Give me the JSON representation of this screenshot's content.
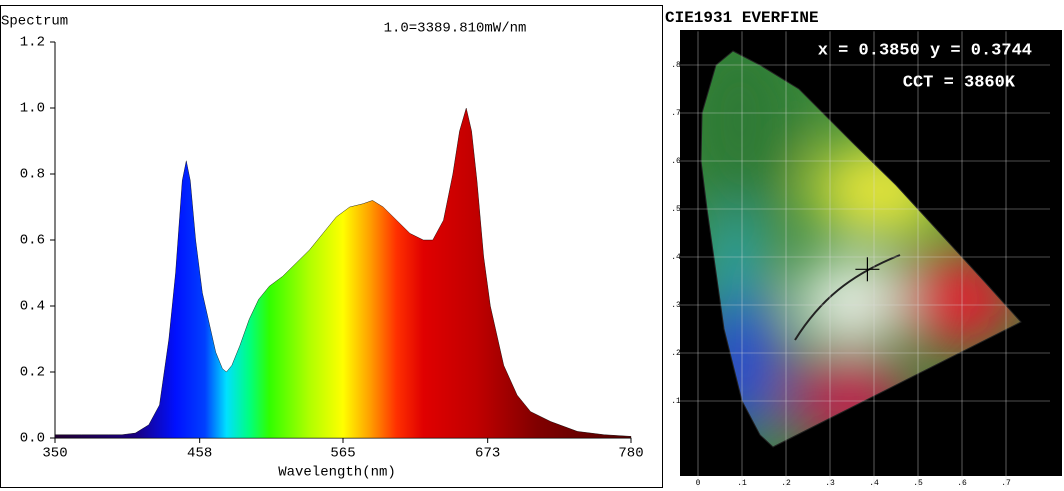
{
  "chart_data": [
    {
      "type": "area",
      "title": "Spectrum",
      "annotation": "1.0=3389.810mW/nm",
      "xlabel": "Wavelength(nm)",
      "x": [
        350,
        370,
        390,
        400,
        410,
        420,
        428,
        435,
        440,
        445,
        448,
        451,
        455,
        460,
        465,
        470,
        475,
        478,
        482,
        488,
        495,
        502,
        510,
        520,
        530,
        540,
        550,
        560,
        570,
        580,
        587,
        595,
        605,
        615,
        625,
        632,
        640,
        647,
        652,
        657,
        661,
        665,
        670,
        675,
        685,
        695,
        705,
        720,
        740,
        760,
        780
      ],
      "values": [
        0.01,
        0.01,
        0.01,
        0.01,
        0.015,
        0.04,
        0.1,
        0.3,
        0.5,
        0.78,
        0.84,
        0.78,
        0.6,
        0.44,
        0.35,
        0.26,
        0.21,
        0.2,
        0.22,
        0.28,
        0.36,
        0.42,
        0.46,
        0.49,
        0.53,
        0.57,
        0.62,
        0.67,
        0.7,
        0.71,
        0.72,
        0.7,
        0.66,
        0.62,
        0.6,
        0.6,
        0.66,
        0.8,
        0.93,
        1.0,
        0.93,
        0.78,
        0.55,
        0.4,
        0.22,
        0.13,
        0.08,
        0.05,
        0.02,
        0.01,
        0.005
      ],
      "xlim": [
        350,
        780
      ],
      "xticks": [
        350,
        458,
        565,
        673,
        780
      ],
      "ylim": [
        0,
        1.2
      ],
      "yticks": [
        {
          "value": 0,
          "label": "0.0"
        },
        0.2,
        0.4,
        0.6,
        0.8,
        {
          "value": 1,
          "label": "1.0"
        },
        1.2
      ]
    },
    {
      "type": "scatter",
      "title": "CIE1931 EVERFINE",
      "annotations": [
        "x = 0.3850 y = 0.3744",
        "CCT = 3860K"
      ],
      "x": [
        0.385
      ],
      "values": [
        0.3744
      ],
      "color": "#000000",
      "xlim": [
        -0.05,
        0.8
      ],
      "ylim": [
        -0.08,
        0.87
      ],
      "xticks": [
        {
          "value": 0,
          "label": "0"
        },
        {
          "value": 0.1,
          "label": ".1"
        },
        {
          "value": 0.2,
          "label": ".2"
        },
        {
          "value": 0.3,
          "label": ".3"
        },
        {
          "value": 0.4,
          "label": ".4"
        },
        {
          "value": 0.5,
          "label": ".5"
        },
        {
          "value": 0.6,
          "label": ".6"
        },
        {
          "value": 0.7,
          "label": ".7"
        }
      ],
      "yticks": [
        {
          "value": 0.1,
          "label": ".1"
        },
        {
          "value": 0.2,
          "label": ".2"
        },
        {
          "value": 0.3,
          "label": ".3"
        },
        {
          "value": 0.4,
          "label": ".4"
        },
        {
          "value": 0.5,
          "label": ".5"
        },
        {
          "value": 0.6,
          "label": ".6"
        },
        {
          "value": 0.7,
          "label": ".7"
        },
        {
          "value": 0.8,
          "label": ".8"
        }
      ],
      "grid": true
    }
  ]
}
